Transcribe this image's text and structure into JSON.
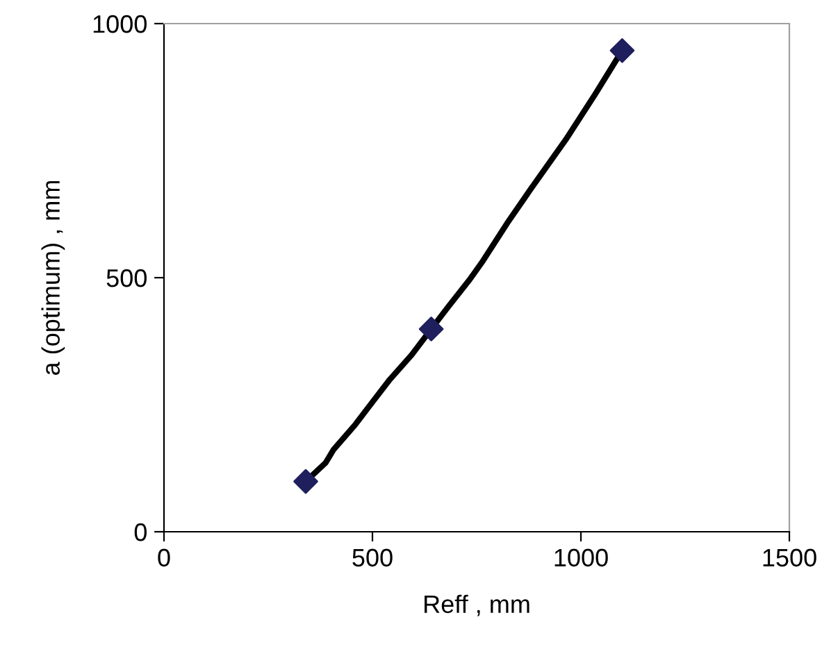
{
  "chart_data": {
    "type": "scatter",
    "xlabel": "Reff , mm",
    "ylabel": "a (optimum) , mm",
    "xlim": [
      0,
      1500
    ],
    "xticks": [
      0,
      500,
      1000,
      1500
    ],
    "ylim": [
      0,
      1000
    ],
    "yticks": [
      0,
      500,
      1000
    ],
    "grid": false,
    "legend": false,
    "series": [
      {
        "type": "line",
        "color": "#000000",
        "marker": "none",
        "line_style": "solid",
        "x": [
          340,
          388,
          407,
          458,
          497,
          542,
          594,
          641,
          682,
          733,
          765,
          823,
          881,
          964,
          1035,
          1099
        ],
        "values": [
          99,
          136,
          162,
          210,
          252,
          300,
          348,
          399,
          443,
          496,
          533,
          607,
          676,
          772,
          862,
          947
        ]
      },
      {
        "color": "#1f1f5e",
        "marker": "diamond",
        "x": [
          340,
          641,
          1099
        ],
        "values": [
          99,
          399,
          947
        ]
      }
    ]
  }
}
